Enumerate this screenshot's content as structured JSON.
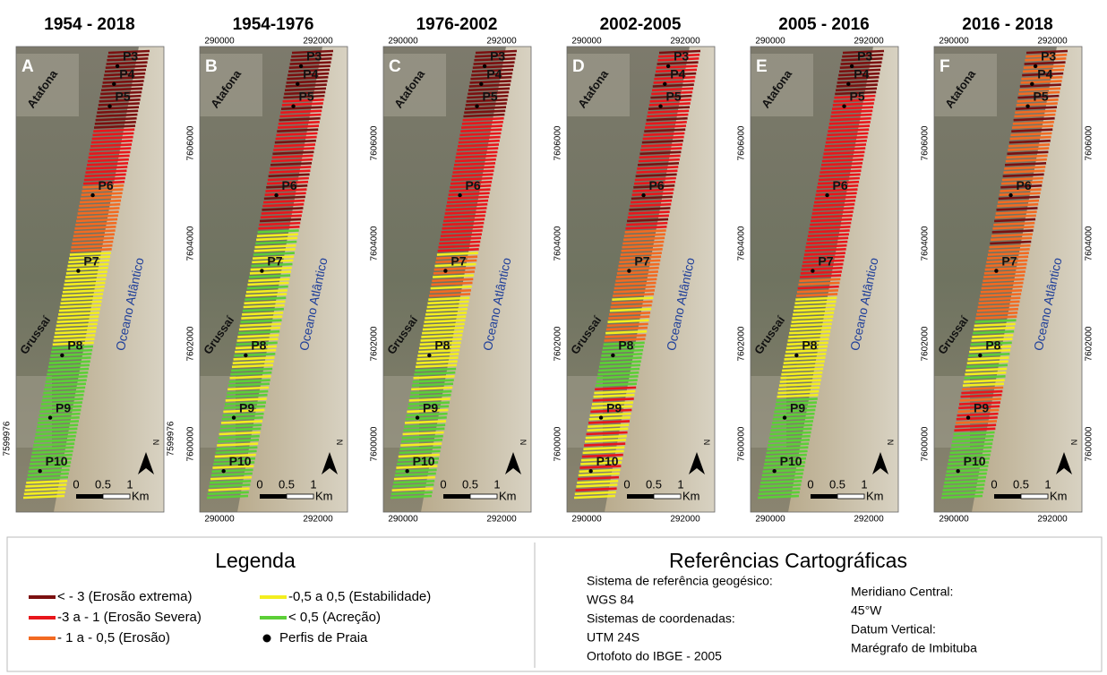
{
  "panels": [
    {
      "title": "1954 - 2018",
      "letter": "A",
      "places": [
        "Atafona",
        "Grussaí",
        "Oceano Atlântico"
      ],
      "profiles": [
        "P3",
        "P4",
        "P5",
        "P6",
        "P7",
        "P8",
        "P9",
        "P10"
      ],
      "top_ticks": [],
      "bottom_ticks": [],
      "left_ticks": [
        "7599976"
      ],
      "right_ticks": [
        "7599976"
      ],
      "scale": [
        "0",
        "0.5",
        "1",
        "Km"
      ],
      "north": "N"
    },
    {
      "title": "1954-1976",
      "letter": "B",
      "places": [
        "Atafona",
        "Grussaí",
        "Oceano Atlântico"
      ],
      "profiles": [
        "P3",
        "P4",
        "P5",
        "P6",
        "P7",
        "P8",
        "P9",
        "P10"
      ],
      "top_ticks": [
        "290000",
        "292000"
      ],
      "bottom_ticks": [
        "290000",
        "292000"
      ],
      "left_ticks": [
        "7606000",
        "7604000",
        "7602000",
        "7600000"
      ],
      "right_ticks": [],
      "scale": [
        "0",
        "0.5",
        "1",
        "Km"
      ],
      "north": "N"
    },
    {
      "title": "1976-2002",
      "letter": "C",
      "places": [
        "Atafona",
        "Grussaí",
        "Oceano Atlântico"
      ],
      "profiles": [
        "P3",
        "P4",
        "P5",
        "P6",
        "P7",
        "P8",
        "P9",
        "P10"
      ],
      "top_ticks": [
        "290000",
        "292000"
      ],
      "bottom_ticks": [
        "290000",
        "292000"
      ],
      "left_ticks": [
        "7606000",
        "7604000",
        "7602000",
        "7600000"
      ],
      "right_ticks": [],
      "scale": [
        "0",
        "0.5",
        "1",
        "Km"
      ],
      "north": "N"
    },
    {
      "title": "2002-2005",
      "letter": "D",
      "places": [
        "Atafona",
        "Grussaí",
        "Oceano Atlântico"
      ],
      "profiles": [
        "P3",
        "P4",
        "P5",
        "P6",
        "P7",
        "P8",
        "P9",
        "P10"
      ],
      "top_ticks": [
        "290000",
        "292000"
      ],
      "bottom_ticks": [
        "290000",
        "292000"
      ],
      "left_ticks": [
        "7606000",
        "7604000",
        "7602000",
        "7600000"
      ],
      "right_ticks": [],
      "scale": [
        "0",
        "0.5",
        "1",
        "Km"
      ],
      "north": "N"
    },
    {
      "title": "2005 - 2016",
      "letter": "E",
      "places": [
        "Atafona",
        "Grussaí",
        "Oceano Atlântico"
      ],
      "profiles": [
        "P3",
        "P4",
        "P5",
        "P6",
        "P7",
        "P8",
        "P9",
        "P10"
      ],
      "top_ticks": [
        "290000",
        "292000"
      ],
      "bottom_ticks": [
        "290000",
        "292000"
      ],
      "left_ticks": [
        "7606000",
        "7604000",
        "7602000",
        "7600000"
      ],
      "right_ticks": [],
      "scale": [
        "0",
        "0.5",
        "1",
        "Km"
      ],
      "north": "N"
    },
    {
      "title": "2016 - 2018",
      "letter": "F",
      "places": [
        "Atafona",
        "Grussaí",
        "Oceano Atlântico"
      ],
      "profiles": [
        "P3",
        "P4",
        "P5",
        "P6",
        "P7",
        "P8",
        "P9",
        "P10"
      ],
      "top_ticks": [
        "290000",
        "292000"
      ],
      "bottom_ticks": [
        "290000",
        "292000"
      ],
      "left_ticks": [
        "7606000",
        "7604000",
        "7602000",
        "7600000"
      ],
      "right_ticks": [
        "7606000",
        "7604000",
        "7602000",
        "7600000"
      ],
      "scale": [
        "0",
        "0.5",
        "1",
        "Km"
      ],
      "north": "N"
    }
  ],
  "legend": {
    "title": "Legenda",
    "items": [
      {
        "label": "< - 3 (Erosão extrema)",
        "color": "#7b1010"
      },
      {
        "label": "-3 a - 1 (Erosão Severa)",
        "color": "#e8161b"
      },
      {
        "label": "- 1 a - 0,5 (Erosão)",
        "color": "#f26a22"
      },
      {
        "label": "-0,5 a 0,5 (Estabilidade)",
        "color": "#f3ee1f"
      },
      {
        "label": "< 0,5 (Acreção)",
        "color": "#5ccf37"
      },
      {
        "label": "Perfis de Praia",
        "color": "#000000"
      }
    ]
  },
  "references": {
    "title": "Referências Cartográficas",
    "col1": [
      "Sistema de referência geogésico:",
      "WGS 84",
      "Sistemas de coordenadas:",
      "UTM 24S",
      "Ortofoto do IBGE - 2005"
    ],
    "col2": [
      "Meridiano Central:",
      "45°W",
      "Datum Vertical:",
      "Marégrafo de Imbituba"
    ]
  }
}
